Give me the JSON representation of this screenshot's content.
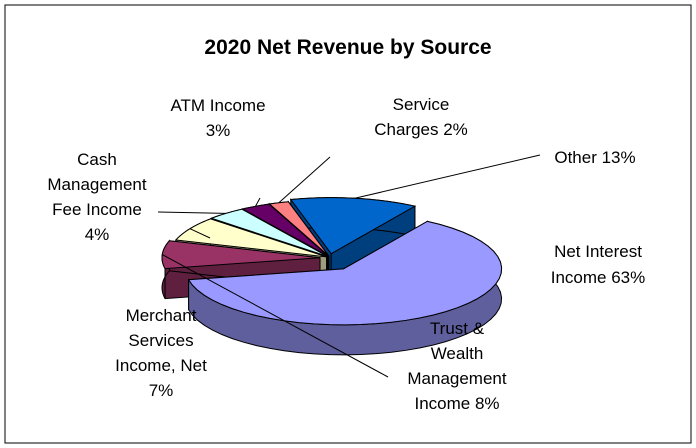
{
  "chart_data": {
    "type": "pie",
    "title": "2020 Net Revenue by Source",
    "slices": [
      {
        "label": "Net Interest Income",
        "value": 63,
        "color": "#9999FF",
        "display": [
          "Net Interest",
          "Income 63%"
        ]
      },
      {
        "label": "Trust & Wealth Management Income",
        "value": 8,
        "color": "#993366",
        "display": [
          "Trust &",
          "Wealth",
          "Management",
          "Income 8%"
        ]
      },
      {
        "label": "Merchant Services Income, Net",
        "value": 7,
        "color": "#FFFFCC",
        "display": [
          "Merchant",
          "Services",
          "Income, Net",
          "7%"
        ]
      },
      {
        "label": "Cash Management Fee Income",
        "value": 4,
        "color": "#CCFFFF",
        "display": [
          "Cash",
          "Management",
          "Fee Income",
          "4%"
        ]
      },
      {
        "label": "ATM Income",
        "value": 3,
        "color": "#660066",
        "display": [
          "ATM Income",
          "3%"
        ]
      },
      {
        "label": "Service Charges",
        "value": 2,
        "color": "#FF8080",
        "display": [
          "Service",
          "Charges 2%"
        ]
      },
      {
        "label": "Other",
        "value": 13,
        "color": "#0066CC",
        "display": [
          "Other 13%"
        ]
      }
    ],
    "legend": "none",
    "style": "3d-exploded"
  }
}
